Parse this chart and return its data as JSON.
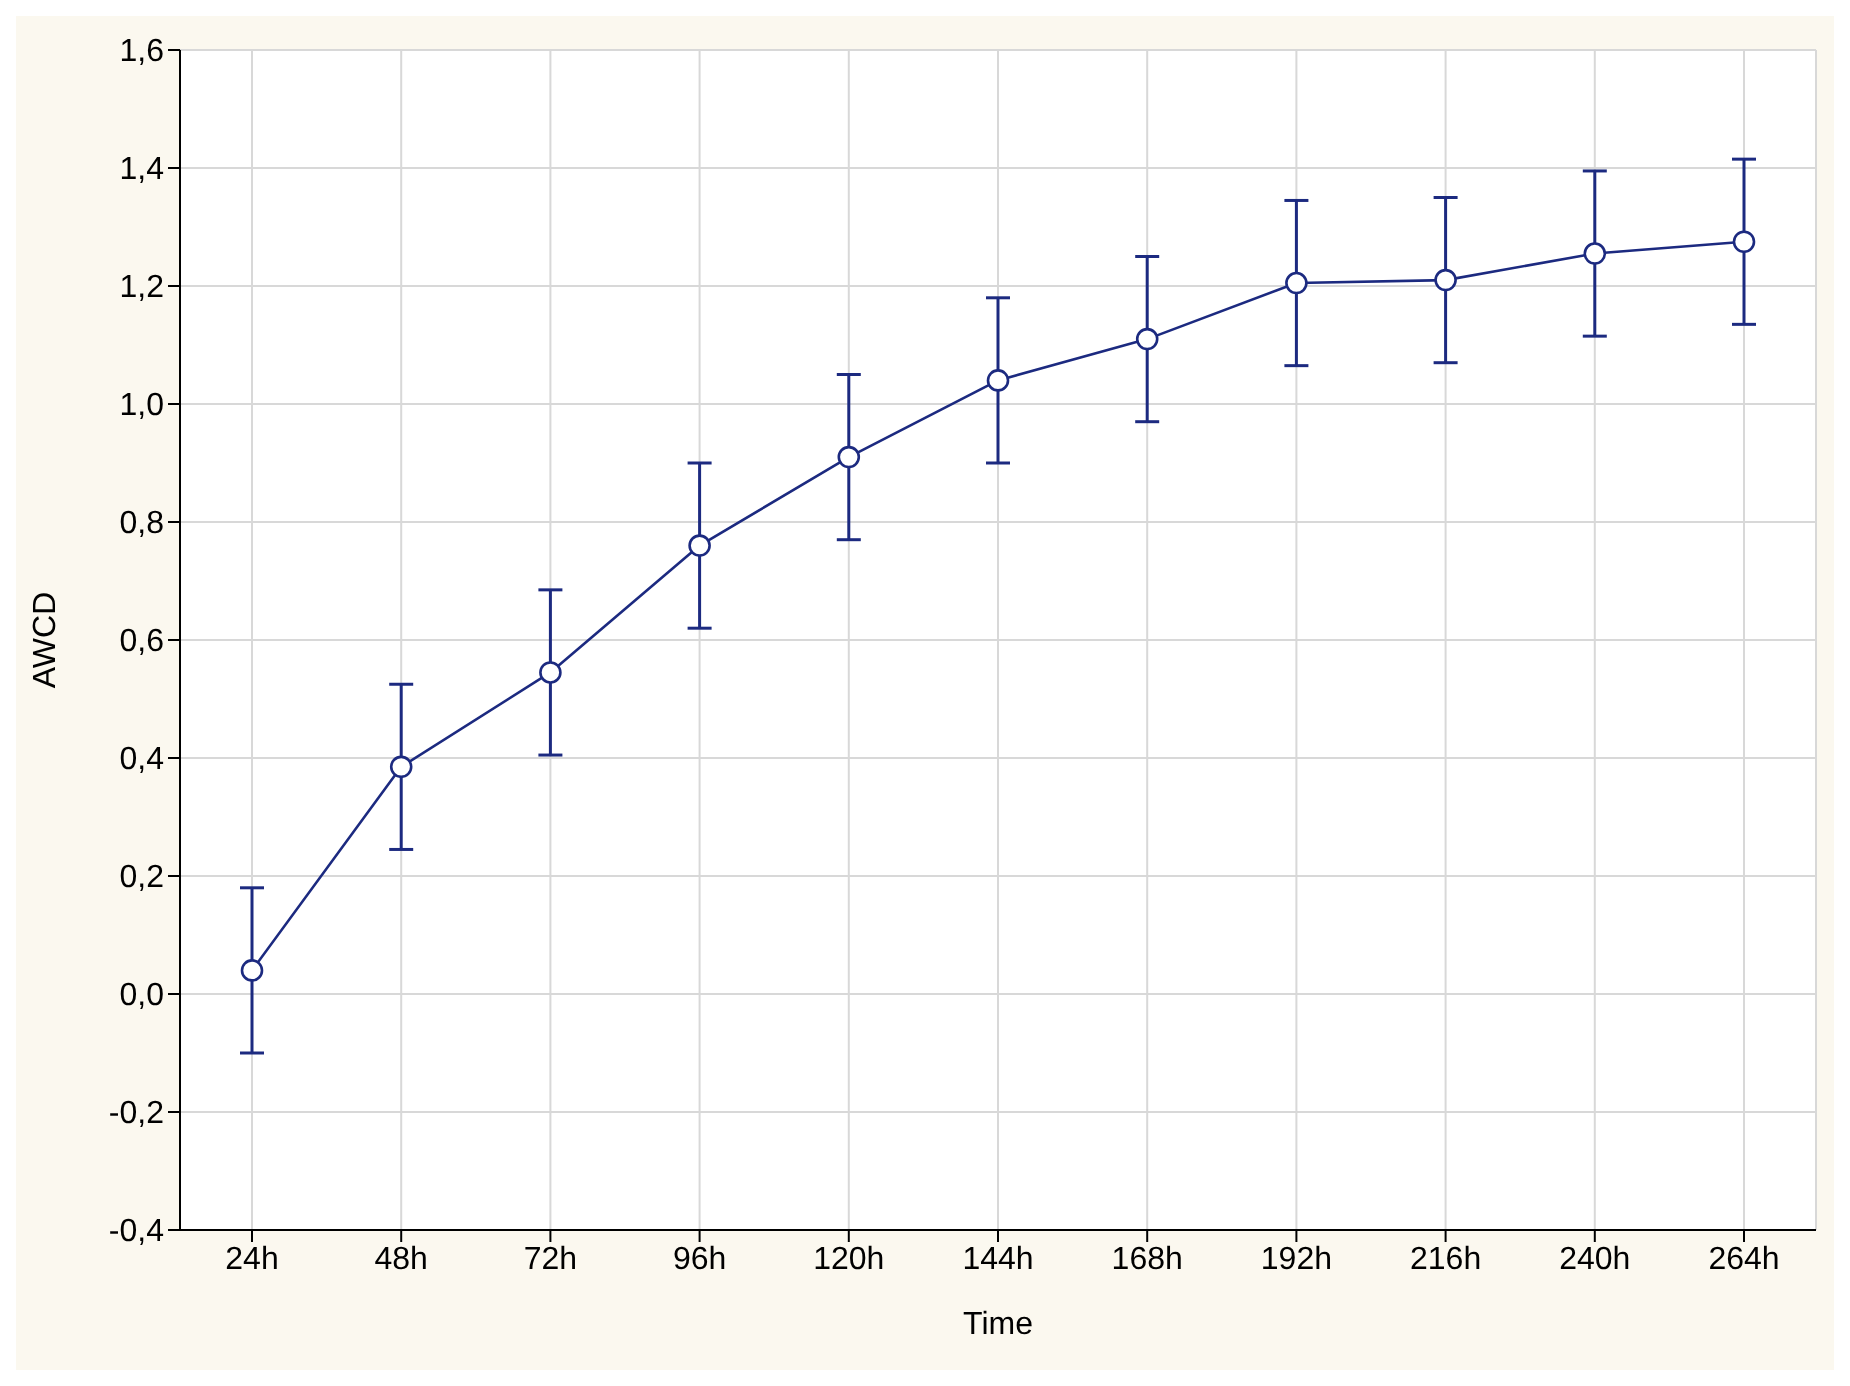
{
  "chart_data": {
    "type": "line",
    "xlabel": "Time",
    "ylabel": "AWCD",
    "categories": [
      "24h",
      "48h",
      "72h",
      "96h",
      "120h",
      "144h",
      "168h",
      "192h",
      "216h",
      "240h",
      "264h"
    ],
    "series": [
      {
        "color": "#1c2a80",
        "values": [
          0.04,
          0.385,
          0.545,
          0.76,
          0.91,
          1.04,
          1.11,
          1.205,
          1.21,
          1.255,
          1.275
        ],
        "errors": [
          0.14,
          0.14,
          0.14,
          0.14,
          0.14,
          0.14,
          0.14,
          0.14,
          0.14,
          0.14,
          0.14
        ]
      }
    ],
    "ylim": [
      -0.4,
      1.6
    ],
    "yticks": [
      {
        "value": -0.4,
        "label": "-0,4"
      },
      {
        "value": -0.2,
        "label": "-0,2"
      },
      {
        "value": 0,
        "label": "0,0"
      },
      {
        "value": 0.2,
        "label": "0,2"
      },
      {
        "value": 0.4,
        "label": "0,4"
      },
      {
        "value": 0.6,
        "label": "0,6"
      },
      {
        "value": 0.8,
        "label": "0,8"
      },
      {
        "value": 1.0,
        "label": "1,0"
      },
      {
        "value": 1.2,
        "label": "1,2"
      },
      {
        "value": 1.4,
        "label": "1,4"
      },
      {
        "value": 1.6,
        "label": "1,6"
      }
    ],
    "grid": true,
    "marker": "circle",
    "line_style": "solid",
    "legend": false
  }
}
